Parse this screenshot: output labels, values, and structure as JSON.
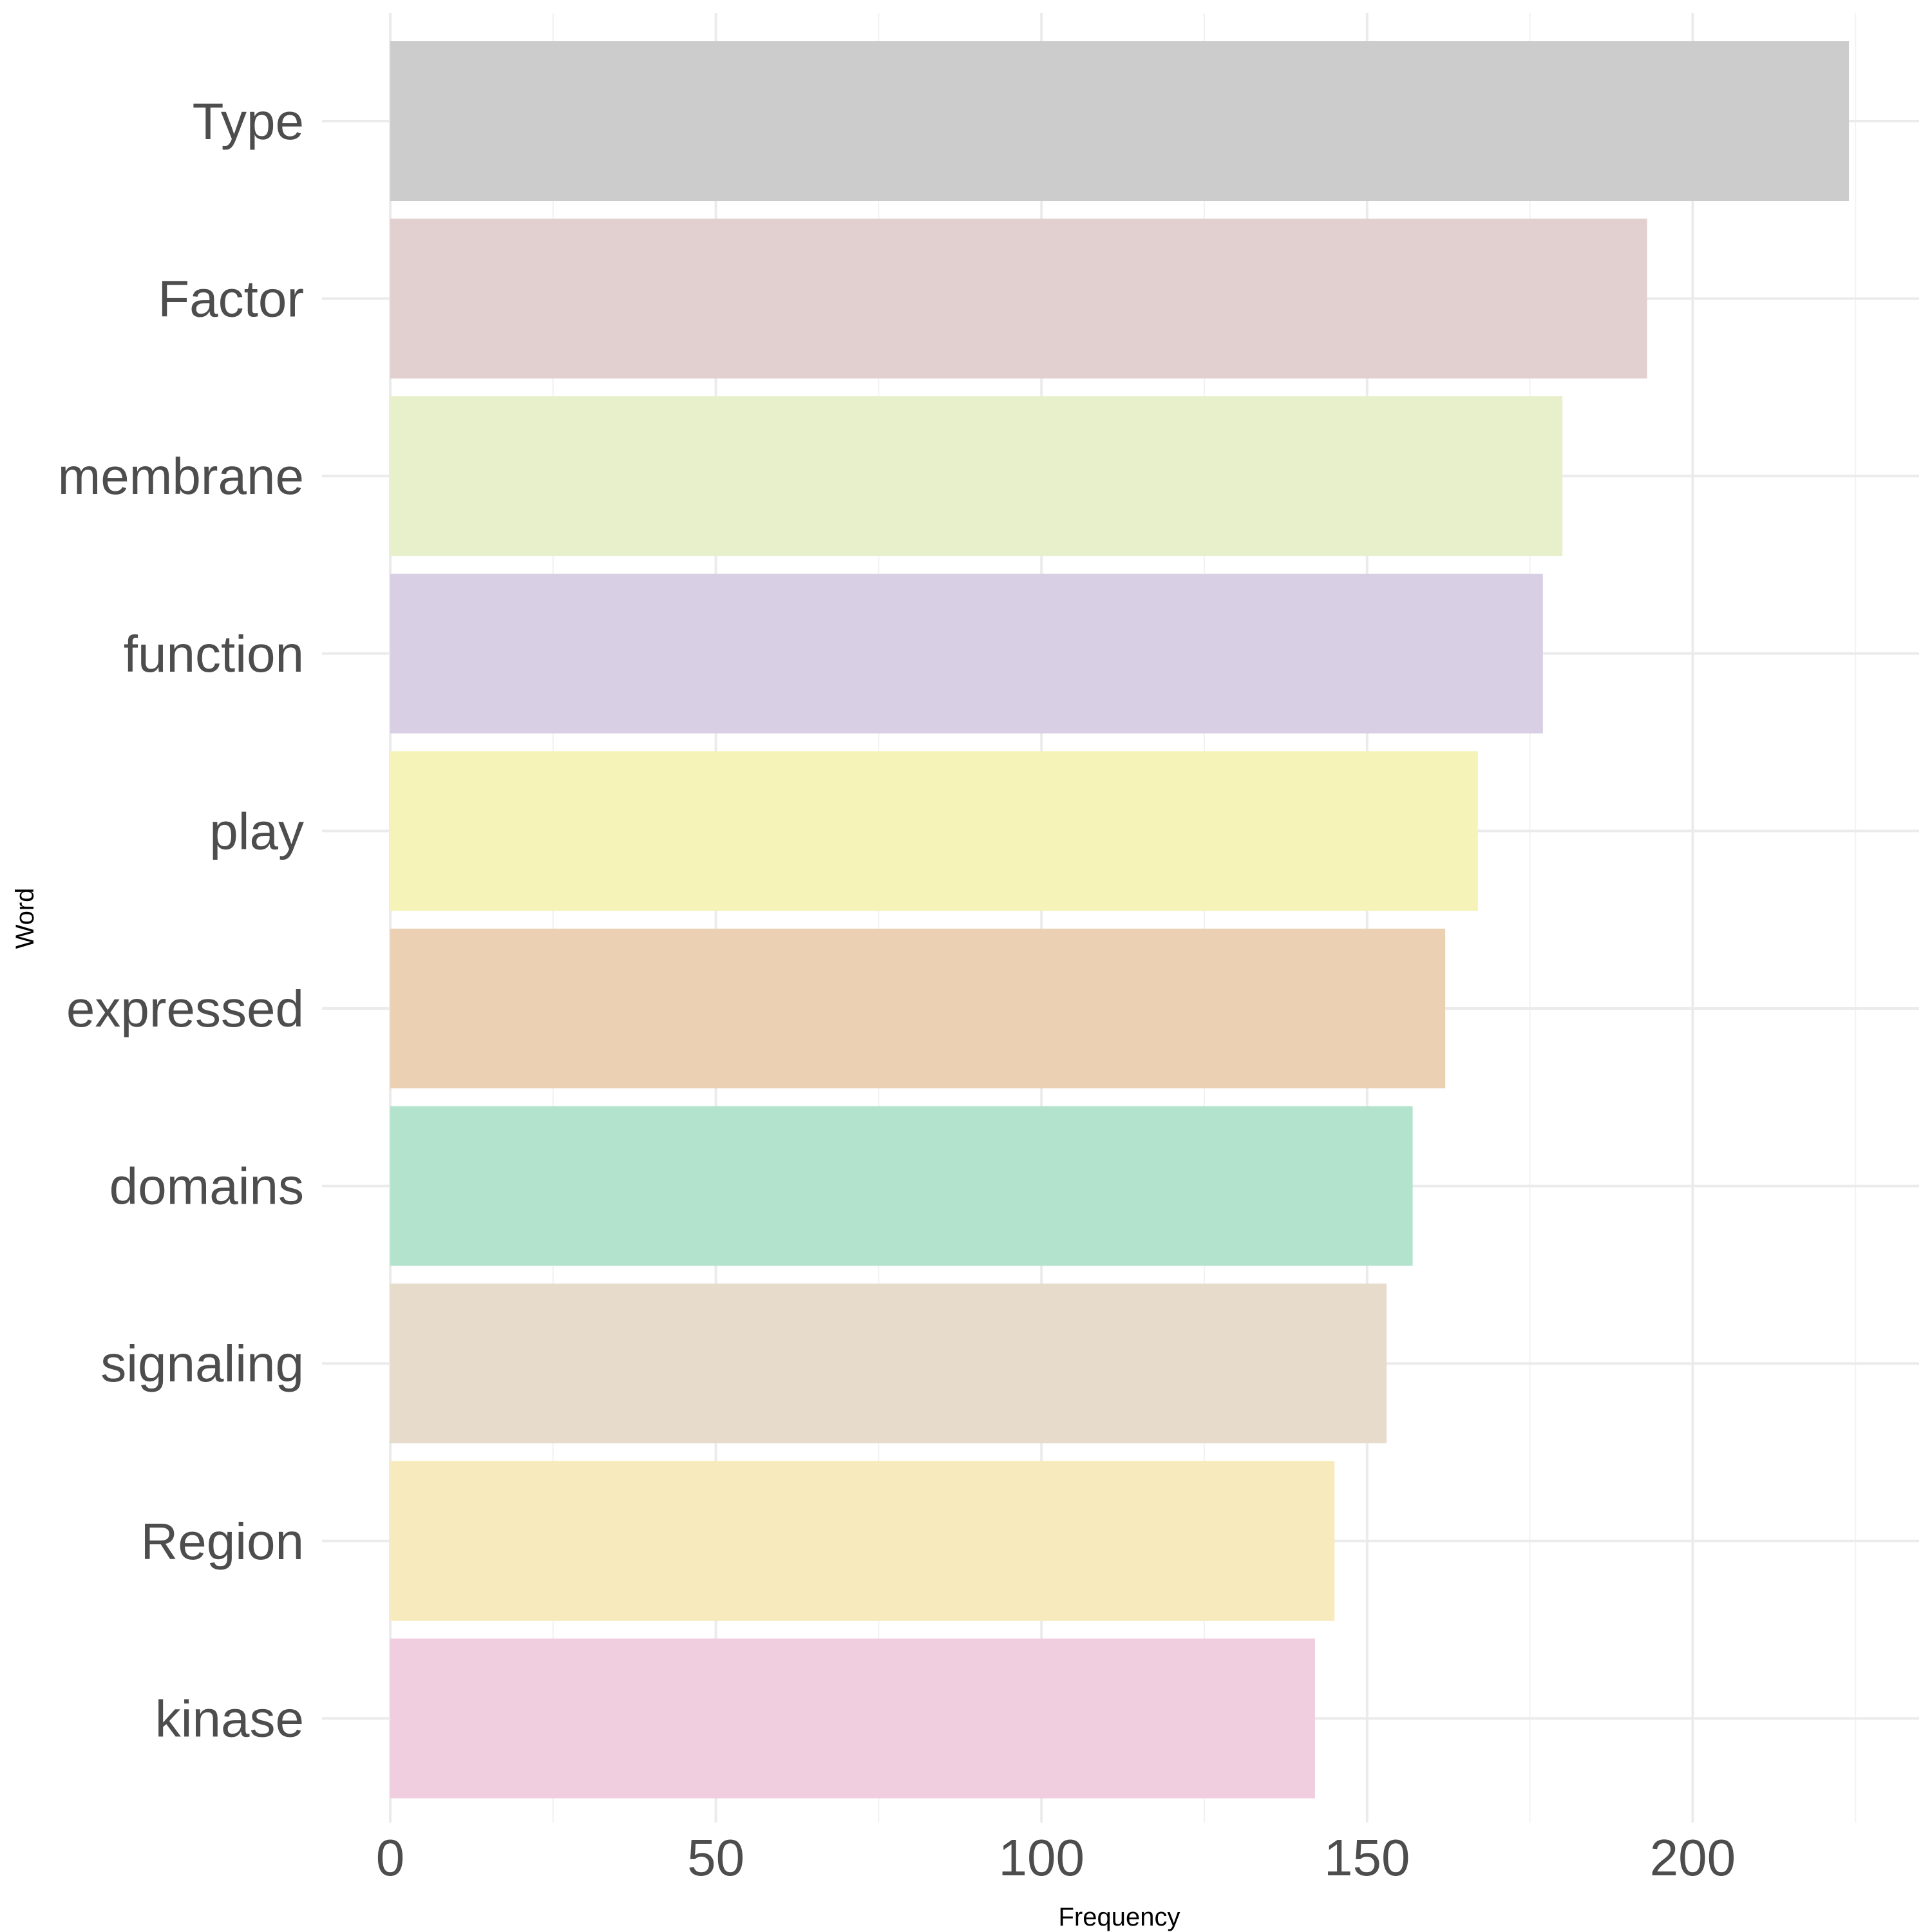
{
  "chart_data": {
    "type": "bar",
    "orientation": "horizontal",
    "title": "",
    "xlabel": "Frequency",
    "ylabel": "Word",
    "xlim": [
      0,
      235
    ],
    "x_ticks": [
      0,
      50,
      100,
      150,
      200
    ],
    "grid": true,
    "legend": "none",
    "categories": [
      "Type",
      "Factor",
      "membrane",
      "function",
      "play",
      "expressed",
      "domains",
      "signaling",
      "Region",
      "kinase"
    ],
    "values": [
      224,
      193,
      180,
      177,
      167,
      162,
      157,
      153,
      145,
      142
    ],
    "colors": [
      "#cccccc",
      "#e1d0cf",
      "#e7f0cb",
      "#d8cfe4",
      "#f5f3b7",
      "#ecd0b3",
      "#b4e3cd",
      "#e7dccc",
      "#f7eabc",
      "#f0cddf"
    ]
  }
}
